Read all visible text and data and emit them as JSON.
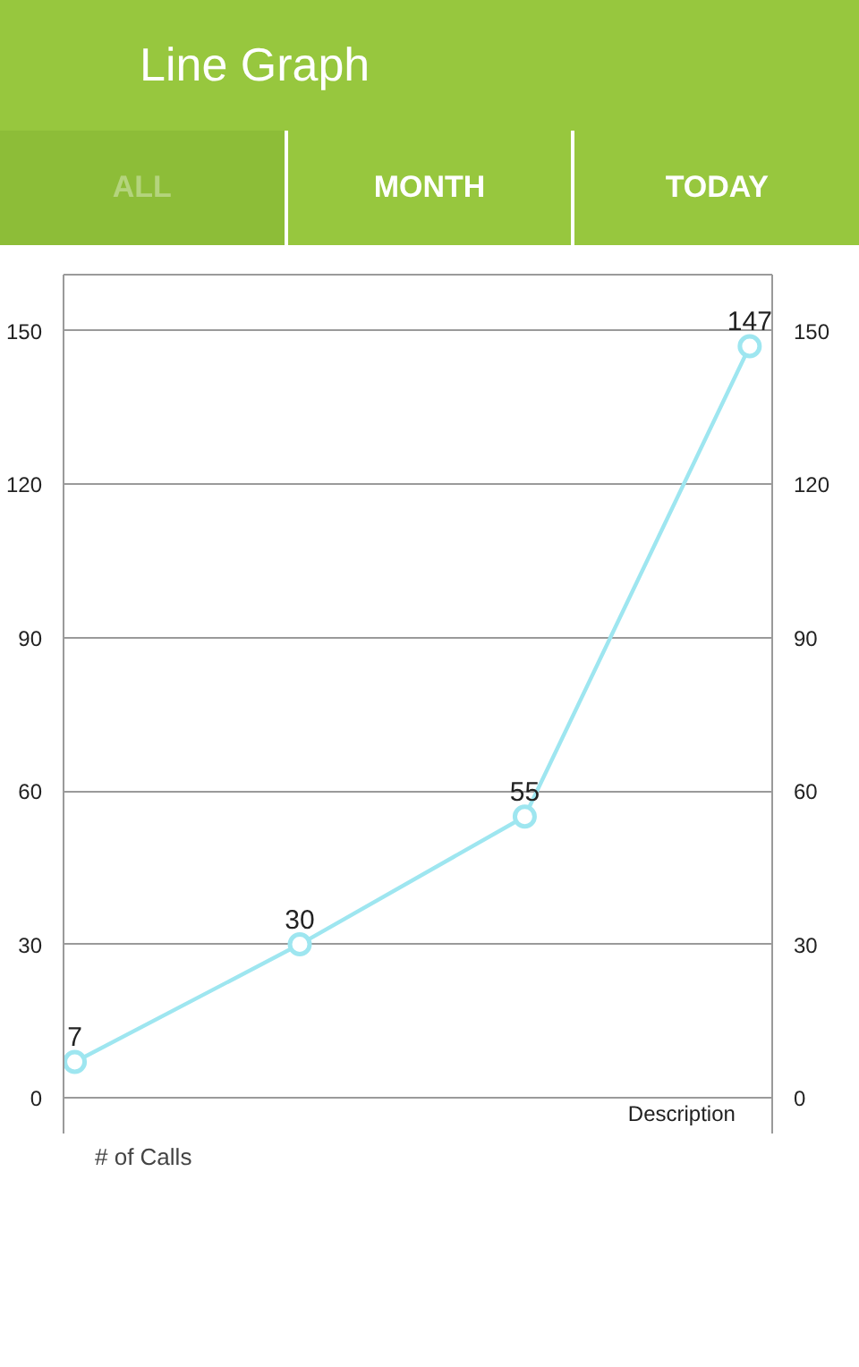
{
  "chart_data": {
    "type": "line",
    "title": "Line Graph",
    "annotations": [
      "ALL",
      "MONTH",
      "TODAY",
      "Description"
    ],
    "categories": [
      null,
      null,
      null,
      null
    ],
    "series": [
      {
        "name": "# of Calls",
        "color": "#9ee6f0",
        "values": [
          7,
          30,
          55,
          147
        ]
      }
    ],
    "ylim": [
      -7,
      161
    ],
    "yticks": [
      0,
      30,
      60,
      90,
      120,
      150
    ],
    "y2lim": [
      -7,
      161
    ],
    "y2ticks": [
      0,
      30,
      60,
      90,
      120,
      150
    ],
    "grid": "y",
    "legend": "bottom left",
    "marker": "circle",
    "line_style": "solid",
    "data_labels": true
  }
}
